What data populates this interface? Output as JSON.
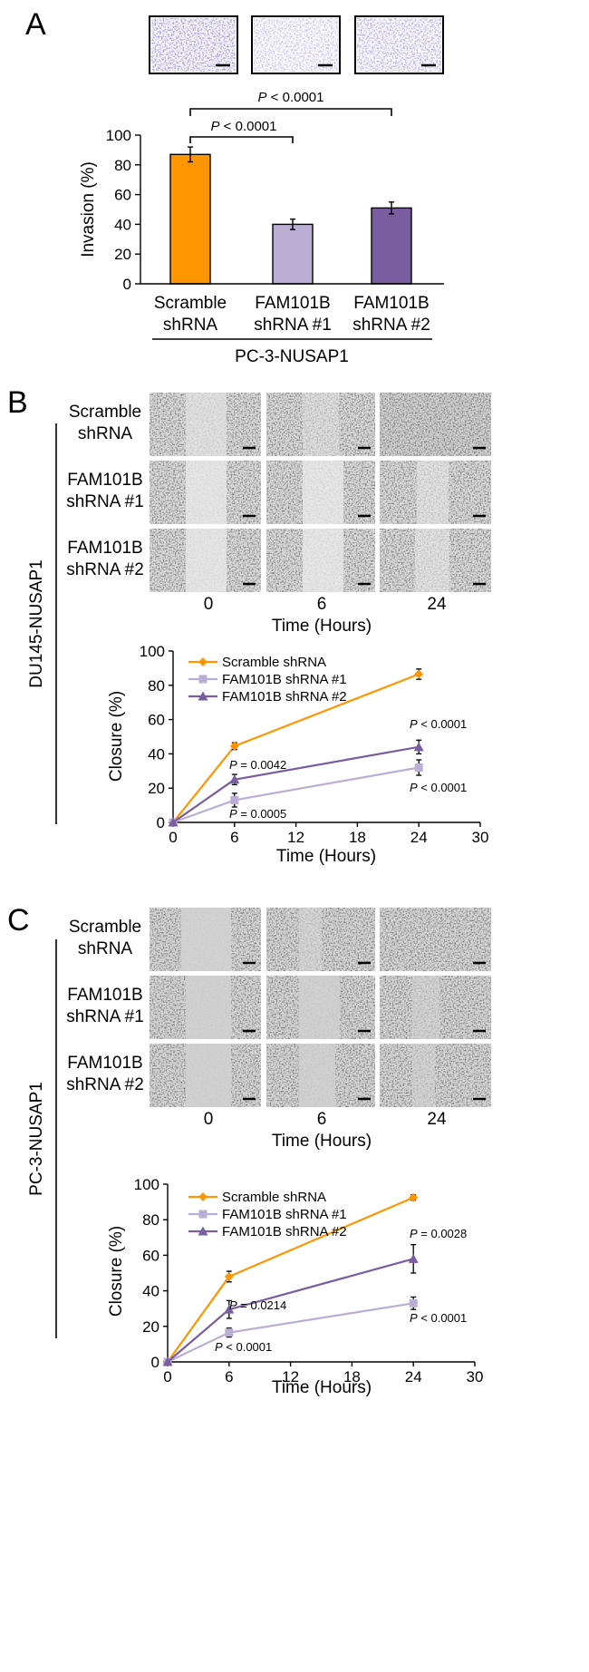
{
  "panels": {
    "A": {
      "letter": "A",
      "row_label": "PC-3-NUSAP1",
      "comparisons": [
        {
          "text_italic": "P",
          "text_rest": " < 0.0001"
        },
        {
          "text_italic": "P",
          "text_rest": " < 0.0001"
        }
      ]
    },
    "B": {
      "letter": "B",
      "row_label": "DU145-NUSAP1",
      "image_rows": [
        {
          "line1": "Scramble",
          "line2": "shRNA"
        },
        {
          "line1": "FAM101B",
          "line2": "shRNA #1"
        },
        {
          "line1": "FAM101B",
          "line2": "shRNA #2"
        }
      ],
      "time_ticks": [
        "0",
        "6",
        "24"
      ],
      "time_label": "Time (Hours)",
      "annotations": [
        {
          "text_italic": "P",
          "text_rest": " = 0.0042"
        },
        {
          "text_italic": "P",
          "text_rest": " = 0.0005"
        },
        {
          "text_italic": "P",
          "text_rest": " < 0.0001"
        },
        {
          "text_italic": "P",
          "text_rest": " < 0.0001"
        }
      ]
    },
    "C": {
      "letter": "C",
      "row_label": "PC-3-NUSAP1",
      "image_rows": [
        {
          "line1": "Scramble",
          "line2": "shRNA"
        },
        {
          "line1": "FAM101B",
          "line2": "shRNA #1"
        },
        {
          "line1": "FAM101B",
          "line2": "shRNA #2"
        }
      ],
      "time_ticks": [
        "0",
        "6",
        "24"
      ],
      "time_label": "Time (Hours)",
      "annotations": [
        {
          "text_italic": "P",
          "text_rest": " = 0.0214"
        },
        {
          "text_italic": "P",
          "text_rest": " < 0.0001"
        },
        {
          "text_italic": "P",
          "text_rest": " = 0.0028"
        },
        {
          "text_italic": "P",
          "text_rest": " < 0.0001"
        }
      ]
    }
  },
  "colors": {
    "scramble": "#FF9500",
    "shrna1": "#BBAED4",
    "shrna2": "#7A5CA0",
    "stain": "#6E5AA8"
  },
  "chart_data": [
    {
      "type": "bar",
      "categories": [
        {
          "line1": "Scramble",
          "line2": "shRNA"
        },
        {
          "line1": "FAM101B",
          "line2": "shRNA #1"
        },
        {
          "line1": "FAM101B",
          "line2": "shRNA #2"
        }
      ],
      "values": [
        87,
        40,
        51
      ],
      "errors": [
        5,
        3.5,
        4
      ],
      "ylabel": "Invasion (%)",
      "ylim": [
        0,
        100
      ],
      "yticks": [
        "0",
        "20",
        "40",
        "60",
        "80",
        "100"
      ],
      "grid": false
    },
    {
      "type": "line",
      "x": [
        0,
        6,
        24
      ],
      "series": [
        {
          "name": "Scramble shRNA",
          "marker": "diamond",
          "values": [
            0,
            44.5,
            86.5
          ],
          "errors": [
            0,
            2,
            3
          ]
        },
        {
          "name": "FAM101B shRNA #1",
          "marker": "square",
          "values": [
            0,
            13,
            32
          ],
          "errors": [
            0,
            4,
            4.5
          ]
        },
        {
          "name": "FAM101B shRNA #2",
          "marker": "triangle",
          "values": [
            0,
            25,
            44
          ],
          "errors": [
            0,
            3,
            4
          ]
        }
      ],
      "xlabel": "Time (Hours)",
      "ylabel": "Closure (%)",
      "xlim": [
        0,
        30
      ],
      "ylim": [
        0,
        100
      ],
      "xticks": [
        "0",
        "6",
        "12",
        "18",
        "24",
        "30"
      ],
      "yticks": [
        "0",
        "20",
        "40",
        "60",
        "80",
        "100"
      ],
      "legend": "top-left",
      "grid": false
    },
    {
      "type": "line",
      "x": [
        0,
        6,
        24
      ],
      "series": [
        {
          "name": "Scramble shRNA",
          "marker": "diamond",
          "values": [
            0,
            48,
            92.5
          ],
          "errors": [
            0,
            3,
            1.5
          ]
        },
        {
          "name": "FAM101B shRNA #1",
          "marker": "square",
          "values": [
            0,
            16.5,
            33
          ],
          "errors": [
            0,
            2.5,
            3.5
          ]
        },
        {
          "name": "FAM101B shRNA #2",
          "marker": "triangle",
          "values": [
            0,
            29.5,
            58
          ],
          "errors": [
            0,
            5,
            8
          ]
        }
      ],
      "xlabel": "Time (Hours)",
      "ylabel": "Closure (%)",
      "xlim": [
        0,
        30
      ],
      "ylim": [
        0,
        100
      ],
      "xticks": [
        "0",
        "6",
        "12",
        "18",
        "24",
        "30"
      ],
      "yticks": [
        "0",
        "20",
        "40",
        "60",
        "80",
        "100"
      ],
      "legend": "top-left",
      "grid": false
    }
  ]
}
